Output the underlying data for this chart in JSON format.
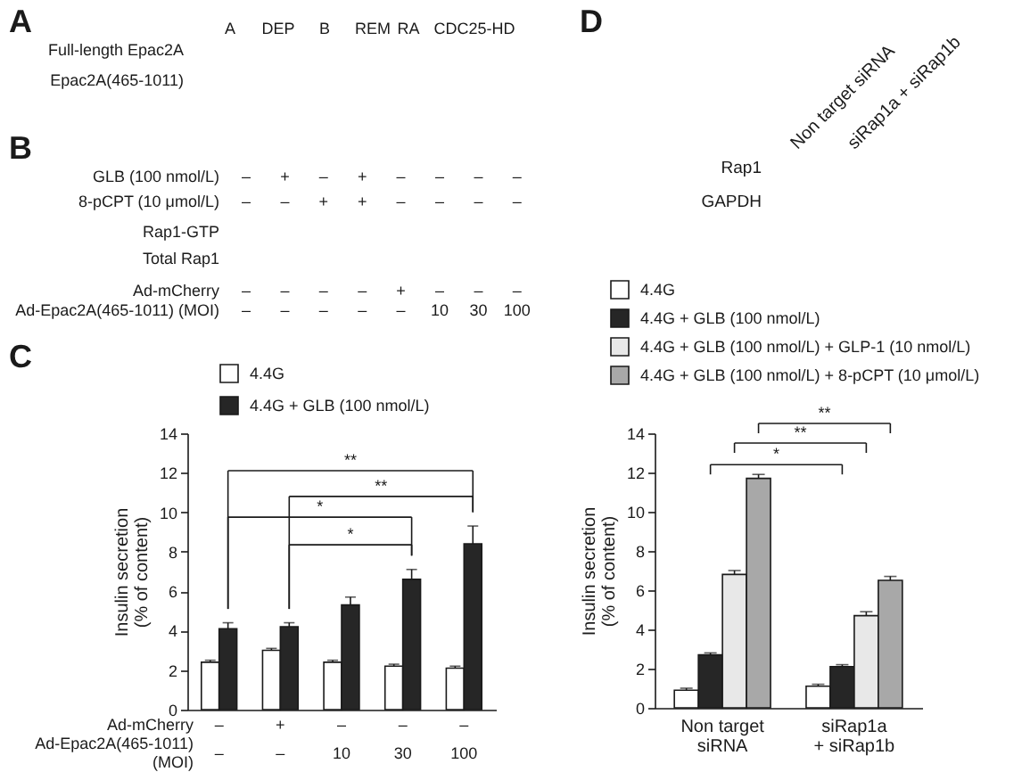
{
  "chart_data": [
    {
      "type": "other",
      "title": "A",
      "annotations": [
        "Full-length Epac2A",
        "Epac2A(465-1011)",
        "A",
        "DEP",
        "B",
        "REM",
        "RA",
        "CDC25-HD"
      ]
    },
    {
      "type": "other",
      "title": "B",
      "annotations": [
        "GLB (100 nmol/L)",
        "8-pCPT (10 μmol/L)",
        "Rap1-GTP",
        "Total Rap1",
        "Ad-mCherry",
        "Ad-Epac2A(465-1011) (MOI)",
        "– + – + – – – –",
        "– – + + – – – –",
        "– – – – + – – –",
        "– – – – – 10 30 100"
      ]
    },
    {
      "type": "bar",
      "title": "C",
      "categories": [
        "–\n–",
        "+\n–",
        "–\n10",
        "–\n30",
        "–\n100"
      ],
      "xlabel": "Ad-mCherry\nAd-Epac2A(465-1011)\n(MOI)",
      "ylabel": "Insulin secretion\n(% of content)",
      "series": [
        {
          "name": "4.4G",
          "color": "#ffffff",
          "values": [
            2.4,
            3.0,
            2.4,
            2.2,
            2.1
          ],
          "errors": [
            0.1,
            0.1,
            0.1,
            0.1,
            0.1
          ]
        },
        {
          "name": "4.4G + GLB (100 nmol/L)",
          "color": "#262626",
          "values": [
            4.1,
            4.2,
            5.3,
            6.6,
            8.4
          ],
          "errors": [
            0.3,
            0.2,
            0.4,
            0.5,
            0.9
          ]
        }
      ],
      "ylim": [
        0,
        14
      ],
      "yticks": [
        0,
        2,
        4,
        6,
        8,
        10,
        12,
        14
      ],
      "legend": "top",
      "annotations": [
        "**",
        "**",
        "*",
        "*"
      ]
    },
    {
      "type": "other",
      "title": "D",
      "annotations": [
        "Non target siRNA",
        "siRap1a + siRap1b",
        "Rap1",
        "GAPDH"
      ]
    },
    {
      "type": "bar",
      "categories": [
        "Non target\nsiRNA",
        "siRap1a\n+ siRap1b"
      ],
      "ylabel": "Insulin secretion\n(% of content)",
      "series": [
        {
          "name": "4.4G",
          "color": "#ffffff",
          "values": [
            0.9,
            1.1
          ],
          "errors": [
            0.1,
            0.1
          ]
        },
        {
          "name": "4.4G + GLB (100 nmol/L)",
          "color": "#262626",
          "values": [
            2.7,
            2.1
          ],
          "errors": [
            0.1,
            0.1
          ]
        },
        {
          "name": "4.4G + GLB (100 nmol/L) + GLP-1 (10 nmol/L)",
          "color": "#e8e8e8",
          "values": [
            6.8,
            4.7
          ],
          "errors": [
            0.2,
            0.2
          ]
        },
        {
          "name": "4.4G + GLB (100 nmol/L) + 8-pCPT (10 μmol/L)",
          "color": "#a8a8a8",
          "values": [
            11.7,
            6.5
          ],
          "errors": [
            0.2,
            0.2
          ]
        }
      ],
      "ylim": [
        0,
        14
      ],
      "yticks": [
        0,
        2,
        4,
        6,
        8,
        10,
        12,
        14
      ],
      "legend": "top",
      "annotations": [
        "**",
        "**",
        "*"
      ]
    }
  ]
}
